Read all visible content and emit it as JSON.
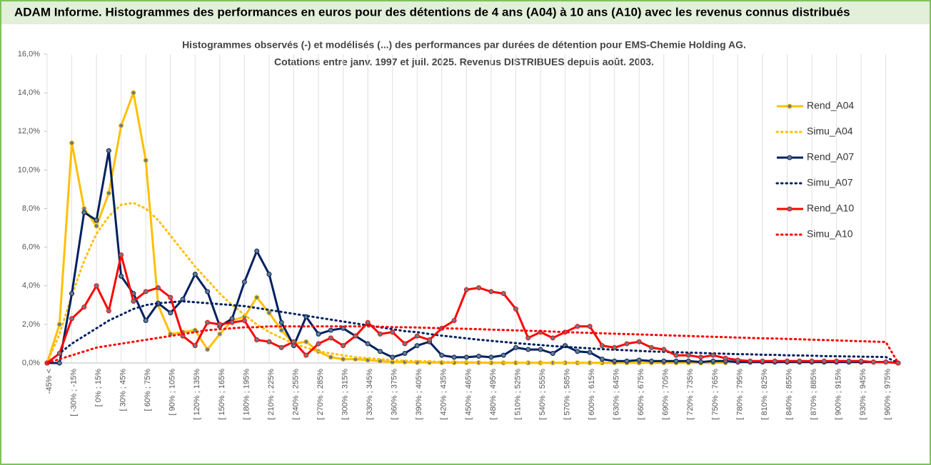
{
  "chart_data": {
    "type": "line",
    "header": "ADAM Informe. Histogrammes des performances en euros pour des détentions de 4 ans (A04) à 10 ans (A10) avec les revenus connus distribués",
    "title": "Histogrammes observés (-) et modélisés (...) des performances par durées de détention pour EMS-Chemie Holding AG.",
    "subtitle": "Cotations entre janv. 1997 et juil. 2025. Revenus DISTRIBUES depuis août. 2003.",
    "categories": [
      "-45% <",
      null,
      "[ -30% ; -15%",
      null,
      "[ 0% ; 15%",
      null,
      "[ 30% ; 45%",
      null,
      "[ 60% ; 75%",
      null,
      "[ 90% ; 105%",
      null,
      "[ 120% ; 135%",
      null,
      "[ 150% ; 165%",
      null,
      "[ 180% ; 195%",
      null,
      "[ 210% ; 225%",
      null,
      "[ 240% ; 255%",
      null,
      "[ 270% ; 285%",
      null,
      "[ 300% ; 315%",
      null,
      "[ 330% ; 345%",
      null,
      "[ 360% ; 375%",
      null,
      "[ 390% ; 405%",
      null,
      "[ 420% ; 435%",
      null,
      "[ 450% ; 465%",
      null,
      "[ 480% ; 495%",
      null,
      "[ 510% ; 525%",
      null,
      "[ 540% ; 555%",
      null,
      "[ 570% ; 585%",
      null,
      "[ 600% ; 615%",
      null,
      "[ 630% ; 645%",
      null,
      "[ 660% ; 675%",
      null,
      "[ 690% ; 705%",
      null,
      "[ 720% ; 735%",
      null,
      "[ 750% ; 765%",
      null,
      "[ 780% ; 795%",
      null,
      "[ 810% ; 825%",
      null,
      "[ 840% ; 855%",
      null,
      "[ 870% ; 885%",
      null,
      "[ 900% ; 915%",
      null,
      "[ 930% ; 945%",
      null,
      "[ 960% ; 975%",
      null
    ],
    "ylim": [
      0,
      16
    ],
    "yticks": [
      {
        "value": 0,
        "label": "0,0%"
      },
      {
        "value": 2,
        "label": "2,0%"
      },
      {
        "value": 4,
        "label": "4,0%"
      },
      {
        "value": 6,
        "label": "6,0%"
      },
      {
        "value": 8,
        "label": "8,0%"
      },
      {
        "value": 10,
        "label": "10,0%"
      },
      {
        "value": 12,
        "label": "12,0%"
      },
      {
        "value": 14,
        "label": "14,0%"
      },
      {
        "value": 16,
        "label": "16,0%"
      }
    ],
    "grid": "x",
    "series": [
      {
        "name": "Rend_A04",
        "color": "#ffc000",
        "style": "solid",
        "markers": true,
        "values": [
          0,
          2.0,
          11.4,
          8.0,
          7.1,
          8.8,
          12.3,
          14.0,
          10.5,
          3.0,
          1.5,
          1.6,
          1.7,
          0.7,
          1.5,
          2.2,
          2.4,
          3.4,
          2.6,
          1.7,
          1.0,
          1.1,
          0.6,
          0.3,
          0.2,
          0.2,
          0.15,
          0.1,
          0.05,
          0.05,
          0.03,
          0.03,
          0.02,
          0.02,
          0.02,
          0.02,
          0.01,
          0.01,
          0.01,
          0.01,
          0.01,
          0.01,
          0.01,
          0.01,
          0.01,
          0.01,
          0.01,
          0.01,
          0.01,
          0.01,
          0.01,
          0.01,
          0.01,
          0.01,
          0.01,
          0.01,
          null,
          null,
          null,
          null,
          null,
          null,
          null,
          null,
          null,
          null,
          null,
          null,
          null,
          null
        ]
      },
      {
        "name": "Simu_A04",
        "color": "#ffc000",
        "style": "dotted",
        "markers": false,
        "values": [
          0,
          1.5,
          3.5,
          5.3,
          6.7,
          7.6,
          8.2,
          8.3,
          8.0,
          7.4,
          6.6,
          5.8,
          5.0,
          4.3,
          3.6,
          3.0,
          2.5,
          2.0,
          1.6,
          1.3,
          1.0,
          0.8,
          0.6,
          0.5,
          0.4,
          0.3,
          0.25,
          0.2,
          0.15,
          0.12,
          0.1,
          0.08,
          0.06,
          0.05,
          0.04,
          0.03,
          0.03,
          0.02,
          0.02,
          0.02,
          0.01,
          0.01,
          0.01,
          0.01,
          0.01,
          0.01,
          0.01,
          null,
          null,
          null,
          null,
          null,
          null,
          null,
          null,
          null,
          null,
          null,
          null,
          null,
          null,
          null,
          null,
          null,
          null,
          null,
          null,
          null,
          null,
          null
        ]
      },
      {
        "name": "Rend_A07",
        "color": "#002060",
        "style": "solid",
        "markers": true,
        "values": [
          0,
          0,
          3.6,
          7.8,
          7.4,
          11.0,
          4.5,
          3.6,
          2.2,
          3.1,
          2.6,
          3.3,
          4.6,
          3.7,
          1.9,
          2.3,
          4.2,
          5.8,
          4.6,
          2.1,
          0.9,
          2.4,
          1.5,
          1.7,
          1.8,
          1.4,
          1.0,
          0.6,
          0.3,
          0.5,
          0.9,
          1.1,
          0.4,
          0.3,
          0.3,
          0.35,
          0.3,
          0.4,
          0.8,
          0.7,
          0.7,
          0.5,
          0.9,
          0.6,
          0.55,
          0.2,
          0.1,
          0.1,
          0.15,
          0.1,
          0.1,
          0.1,
          0.1,
          0.05,
          0.1,
          0.1,
          0.05,
          0.05,
          0.05,
          0.05,
          0.05,
          0.05,
          0.05,
          0.05,
          0.05,
          0.05,
          0.05,
          0.05,
          0.05,
          0
        ]
      },
      {
        "name": "Simu_A07",
        "color": "#002060",
        "style": "dotted",
        "markers": false,
        "values": [
          0,
          0.5,
          1.0,
          1.4,
          1.8,
          2.2,
          2.5,
          2.8,
          3.0,
          3.1,
          3.15,
          3.2,
          3.15,
          3.1,
          3.05,
          3.0,
          2.95,
          2.85,
          2.75,
          2.65,
          2.55,
          2.45,
          2.35,
          2.25,
          2.15,
          2.05,
          1.95,
          1.85,
          1.75,
          1.65,
          1.6,
          1.5,
          1.42,
          1.35,
          1.28,
          1.21,
          1.15,
          1.09,
          1.03,
          0.98,
          0.93,
          0.88,
          0.84,
          0.8,
          0.76,
          0.72,
          0.69,
          0.66,
          0.63,
          0.6,
          0.58,
          0.56,
          0.54,
          0.52,
          0.5,
          0.48,
          0.46,
          0.45,
          0.43,
          0.42,
          0.4,
          0.39,
          0.38,
          0.36,
          0.35,
          0.34,
          0.33,
          0.32,
          0.31,
          0
        ]
      },
      {
        "name": "Rend_A10",
        "color": "#ff0000",
        "style": "solid",
        "markers": true,
        "values": [
          0,
          0.5,
          2.3,
          2.9,
          4.0,
          2.7,
          5.6,
          3.2,
          3.7,
          3.9,
          3.4,
          1.4,
          0.9,
          2.1,
          2.0,
          2.1,
          2.2,
          1.2,
          1.1,
          0.8,
          1.1,
          0.4,
          1.0,
          1.3,
          0.9,
          1.4,
          2.1,
          1.5,
          1.6,
          1.0,
          1.4,
          1.2,
          1.8,
          2.2,
          3.8,
          3.9,
          3.7,
          3.6,
          2.8,
          1.3,
          1.6,
          1.3,
          1.6,
          1.9,
          1.9,
          0.9,
          0.8,
          1.0,
          1.1,
          0.8,
          0.7,
          0.4,
          0.4,
          0.3,
          0.4,
          0.25,
          0.15,
          0.1,
          0.1,
          0.1,
          0.1,
          0.1,
          0.1,
          0.1,
          0.1,
          0.1,
          0.1,
          0.05,
          0.05,
          0
        ]
      },
      {
        "name": "Simu_A10",
        "color": "#ff0000",
        "style": "dotted",
        "markers": false,
        "values": [
          0,
          0.2,
          0.4,
          0.6,
          0.8,
          0.9,
          1.0,
          1.1,
          1.2,
          1.3,
          1.4,
          1.5,
          1.6,
          1.7,
          1.75,
          1.8,
          1.85,
          1.85,
          1.9,
          1.9,
          1.9,
          1.9,
          1.9,
          1.9,
          1.9,
          1.9,
          1.9,
          1.88,
          1.86,
          1.85,
          1.84,
          1.82,
          1.8,
          1.79,
          1.77,
          1.75,
          1.73,
          1.71,
          1.69,
          1.67,
          1.65,
          1.63,
          1.6,
          1.58,
          1.56,
          1.54,
          1.52,
          1.5,
          1.48,
          1.46,
          1.44,
          1.42,
          1.4,
          1.38,
          1.36,
          1.34,
          1.32,
          1.3,
          1.28,
          1.27,
          1.25,
          1.23,
          1.21,
          1.19,
          1.17,
          1.15,
          1.13,
          1.11,
          1.09,
          0
        ]
      }
    ]
  }
}
